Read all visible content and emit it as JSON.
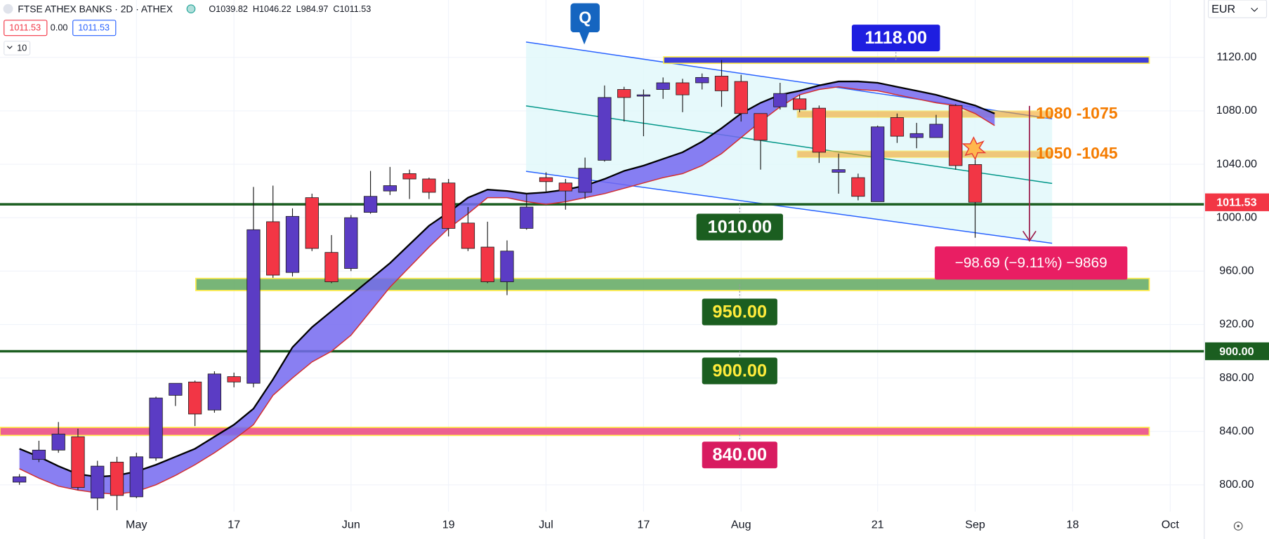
{
  "chart_data": {
    "type": "candlestick",
    "title": "FTSE ATHEX BANKS · 2D · ATHEX",
    "ohlc_text": [
      "O1039.82",
      "H1046.22",
      "L984.97",
      "C1011.53"
    ],
    "price_badges": [
      "1011.53",
      "0.00",
      "1011.53"
    ],
    "indicator_badge": "10",
    "currency": "EUR",
    "marker": "Q",
    "categories": [
      null,
      null,
      null,
      null,
      null,
      null,
      "May",
      null,
      null,
      null,
      null,
      "17",
      null,
      null,
      null,
      null,
      null,
      "Jun",
      null,
      null,
      null,
      null,
      "19",
      null,
      null,
      null,
      null,
      "Jul",
      null,
      null,
      null,
      null,
      "17",
      null,
      null,
      null,
      null,
      "Aug",
      null,
      null,
      null,
      null,
      null,
      null,
      "21",
      null,
      null,
      null,
      null,
      "Sep",
      null,
      null,
      null,
      null,
      "18",
      null,
      null,
      null,
      null,
      "Oct",
      null
    ],
    "open": [
      802,
      819,
      826,
      836,
      790,
      817,
      791,
      820,
      867,
      877,
      856,
      881,
      876,
      997,
      959,
      1015,
      974,
      962,
      1004,
      1020,
      1033,
      1029,
      1026,
      996,
      978,
      952,
      992,
      1030,
      1026,
      1019,
      1043,
      1096,
      1091,
      1096,
      1101,
      1101,
      1106,
      1102,
      1078,
      1083,
      1089,
      1082,
      1034,
      1030,
      1012,
      1075,
      1060,
      1060,
      1084,
      1039.82,
      null,
      null,
      null,
      null,
      null,
      null,
      null,
      null,
      null,
      null,
      null
    ],
    "high": [
      808,
      833,
      847,
      842,
      818,
      821,
      824,
      866,
      876,
      878,
      885,
      884,
      1023,
      1024,
      1007,
      1018,
      987,
      1002,
      1035,
      1038,
      1036,
      1030,
      1029,
      1008,
      997,
      983,
      1018,
      1034,
      1029,
      1045,
      1099,
      1098,
      1096,
      1105,
      1104,
      1108,
      1118,
      1107,
      1078,
      1101,
      1092,
      1084,
      1048,
      1033,
      1069,
      1078,
      1071,
      1077,
      1085,
      1046.22,
      null,
      null,
      null,
      null,
      null,
      null,
      null,
      null,
      null,
      null,
      null
    ],
    "low": [
      800,
      817,
      824,
      796,
      781,
      781,
      790,
      818,
      859,
      844,
      854,
      873,
      873,
      955,
      956,
      975,
      951,
      960,
      1003,
      1017,
      1014,
      1014,
      986,
      975,
      951,
      942,
      991,
      1019,
      1006,
      1014,
      1042,
      1072,
      1061,
      1089,
      1079,
      1096,
      1083,
      1072,
      1036,
      1081,
      1079,
      1041,
      1018,
      1013,
      1012,
      1056,
      1052,
      1060,
      1036,
      984.97,
      null,
      null,
      null,
      null,
      null,
      null,
      null,
      null,
      null,
      null,
      null
    ],
    "close": [
      806,
      826,
      838,
      798,
      814,
      792,
      821,
      865,
      876,
      853,
      883,
      877,
      991,
      957,
      1001,
      977,
      952,
      1000,
      1016,
      1024,
      1029,
      1019,
      992,
      977,
      952,
      975,
      1008,
      1027,
      1020,
      1037,
      1090,
      1090,
      1092,
      1101,
      1092,
      1105,
      1095,
      1078,
      1058,
      1093,
      1081,
      1049,
      1036,
      1016,
      1068,
      1061,
      1063,
      1070,
      1039,
      1011.53,
      null,
      null,
      null,
      null,
      null,
      null,
      null,
      null,
      null,
      null,
      null
    ],
    "up_color": "#5b3cc4",
    "down_color": "#f23645",
    "ribbon": {
      "color": "#7468f0",
      "lines": [
        {
          "color": "#000000",
          "values": [
            827,
            821,
            814,
            808,
            806,
            807,
            810,
            815,
            821,
            827,
            836,
            845,
            857,
            879,
            903,
            918,
            930,
            942,
            954,
            966,
            980,
            994,
            1004,
            1015,
            1021,
            1020,
            1018,
            1019,
            1021,
            1024,
            1029,
            1035,
            1039,
            1044,
            1049,
            1057,
            1067,
            1078,
            1086,
            1092,
            1095,
            1099,
            1102,
            1102,
            1101,
            1098,
            1095,
            1092,
            1088,
            1084,
            1078,
            null,
            null,
            null,
            null,
            null,
            null,
            null,
            null,
            null,
            null
          ]
        },
        {
          "color": "#d32f2f",
          "values": [
            812,
            805,
            799,
            796,
            794,
            793,
            795,
            800,
            807,
            815,
            824,
            834,
            845,
            867,
            880,
            892,
            900,
            912,
            930,
            948,
            963,
            978,
            992,
            1003,
            1015,
            1015,
            1012,
            1010,
            1012,
            1015,
            1018,
            1022,
            1026,
            1030,
            1033,
            1039,
            1048,
            1060,
            1072,
            1083,
            1092,
            1096,
            1098,
            1096,
            1095,
            1092,
            1089,
            1086,
            1084,
            1078,
            1069,
            null,
            null,
            null,
            null,
            null,
            null,
            null,
            null,
            null,
            null
          ]
        }
      ]
    },
    "ylim": [
      780,
      1163
    ],
    "yticks": [
      {
        "value": 800,
        "label": "800.00"
      },
      {
        "value": 840,
        "label": "840.00"
      },
      {
        "value": 880,
        "label": "880.00"
      },
      {
        "value": 920,
        "label": "920.00"
      },
      {
        "value": 960,
        "label": "960.00"
      },
      {
        "value": 1000,
        "label": "1000.00"
      },
      {
        "value": 1040,
        "label": "1040.00"
      },
      {
        "value": 1080,
        "label": "1080.00"
      },
      {
        "value": 1120,
        "label": "1120.00"
      }
    ],
    "grid": true,
    "levels": [
      {
        "value": 1118,
        "label": "1118.00",
        "color": "#1e1ee0",
        "text_color": "#ffffff",
        "line_color": "#2a2ad6",
        "style": "band"
      },
      {
        "value": 1010,
        "label": "1010.00",
        "color": "#1b5e20",
        "text_color": "#ffffff",
        "line_color": "#1b5e20",
        "style": "line"
      },
      {
        "value": 950,
        "label": "950.00",
        "color": "#1b5e20",
        "text_color": "#ffeb3b",
        "line_color": "#6aae6a",
        "style": "band"
      },
      {
        "value": 900,
        "label": "900.00",
        "color": "#1b5e20",
        "text_color": "#ffeb3b",
        "line_color": "#1b5e20",
        "style": "line"
      },
      {
        "value": 840,
        "label": "840.00",
        "color": "#d81b60",
        "text_color": "#ffffff",
        "line_color": "#ec4f86",
        "style": "band"
      }
    ],
    "zones": [
      {
        "top": 1080,
        "bottom": 1075,
        "label": "1080 -1075",
        "color": "#f5a623"
      },
      {
        "top": 1050,
        "bottom": 1045,
        "label": "1050 -1045",
        "color": "#f5a623"
      }
    ],
    "axis_labels": [
      {
        "value": 1011.53,
        "label": "1011.53",
        "color": "#f23645"
      },
      {
        "value": 900,
        "label": "900.00",
        "color": "#1b5e20"
      }
    ],
    "measurement": "−98.69 (−9.11%) −9869"
  }
}
